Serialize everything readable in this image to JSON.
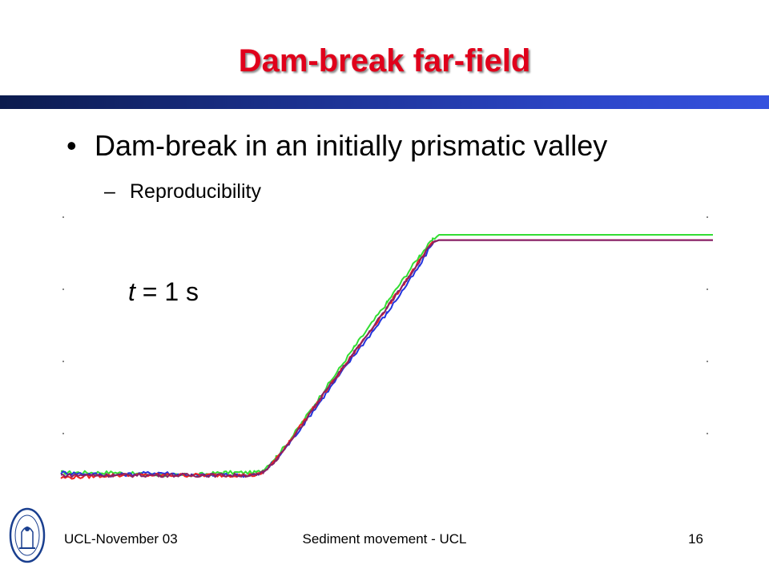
{
  "slide": {
    "title": "Dam-break far-field",
    "bullet": "Dam-break in an initially prismatic valley",
    "bullet_marker": "•",
    "sub_bullet": "Reproducibility",
    "sub_bullet_marker": "–",
    "annotation_var": "t",
    "annotation_rest": " = 1 s"
  },
  "footer": {
    "left": "UCL-November 03",
    "center": "Sediment movement - UCL",
    "page_number": "16"
  },
  "colors": {
    "title": "#e0001b",
    "green": "#33dd33",
    "blue": "#2233dd",
    "red": "#ee2222",
    "purple": "#882266"
  },
  "chart_data": {
    "type": "line",
    "title": "",
    "xlabel": "",
    "ylabel": "",
    "note": "Unlabeled profile plot; values read in normalized plot units (x 0-100, y 0-100).",
    "xlim": [
      0,
      100
    ],
    "ylim": [
      0,
      100
    ],
    "series": [
      {
        "color": "green",
        "x": [
          0,
          8,
          15,
          20,
          25,
          30,
          31,
          33,
          35,
          40,
          45,
          50,
          55,
          57,
          58,
          100
        ],
        "y": [
          5,
          5,
          4,
          4,
          5,
          5,
          6,
          11,
          17,
          35,
          53,
          70,
          88,
          94,
          96,
          96
        ]
      },
      {
        "color": "blue",
        "x": [
          0,
          8,
          15,
          20,
          25,
          30,
          31,
          33,
          35,
          40,
          45,
          50,
          55,
          57,
          58,
          100
        ],
        "y": [
          5,
          4,
          5,
          4,
          4,
          4,
          5,
          10,
          16,
          33,
          50,
          66,
          84,
          93,
          94,
          94
        ]
      },
      {
        "color": "red",
        "x": [
          0,
          8,
          15,
          20,
          25,
          30,
          31,
          33,
          35,
          40,
          45,
          50,
          55,
          57,
          58,
          100
        ],
        "y": [
          3,
          4,
          4,
          4,
          4,
          4,
          5,
          10,
          17,
          34,
          51,
          68,
          86,
          93,
          94,
          94
        ]
      },
      {
        "color": "purple",
        "x": [
          0,
          8,
          15,
          20,
          25,
          30,
          31,
          33,
          35,
          40,
          45,
          50,
          55,
          57,
          58,
          100
        ],
        "y": [
          4,
          4,
          4,
          4,
          4,
          4,
          5,
          10,
          16,
          34,
          51,
          68,
          86,
          93,
          94,
          94
        ]
      }
    ]
  }
}
